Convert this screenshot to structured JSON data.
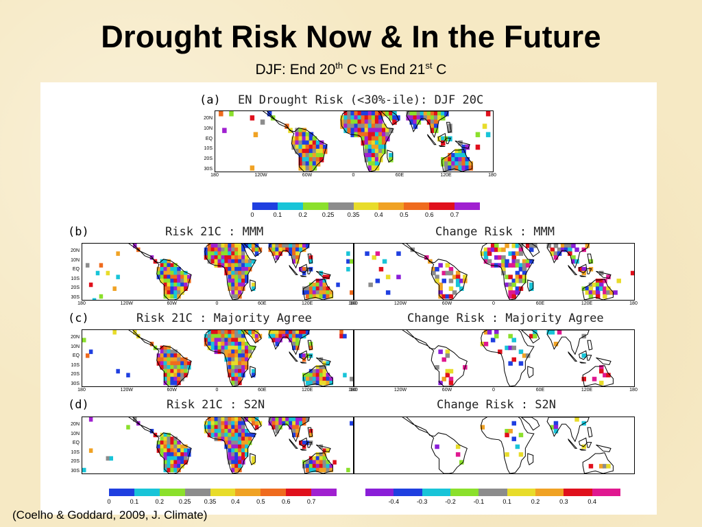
{
  "slide": {
    "title": "Drought Risk Now & In the Future",
    "subtitle_pre": "DJF: End 20",
    "subtitle_sup1": "th",
    "subtitle_mid": " C vs End 21",
    "subtitle_sup2": "st",
    "subtitle_post": " C",
    "citation": "(Coelho & Goddard, 2009, J. Climate)"
  },
  "panels": {
    "a": {
      "letter": "(a)",
      "title": "EN Drought Risk (<30%-ile): DJF 20C"
    },
    "b": {
      "letter": "(b)",
      "left_title": "Risk 21C : MMM",
      "right_title": "Change Risk : MMM"
    },
    "c": {
      "letter": "(c)",
      "left_title": "Risk 21C : Majority Agree",
      "right_title": "Change Risk : Majority Agree"
    },
    "d": {
      "letter": "(d)",
      "left_title": "Risk 21C : S2N",
      "right_title": "Change Risk : S2N"
    }
  },
  "axes": {
    "lat_labels": [
      "20N",
      "10N",
      "EQ",
      "10S",
      "20S",
      "30S"
    ],
    "lon_labels": [
      "180",
      "120W",
      "60W",
      "0",
      "60E",
      "120E",
      "180"
    ]
  },
  "colorbars": {
    "risk_labels": [
      "0",
      "0.1",
      "0.2",
      "0.25",
      "0.35",
      "0.4",
      "0.5",
      "0.6",
      "0.7"
    ],
    "risk_colors": [
      "#1f3fe0",
      "#18c4d8",
      "#8be02c",
      "#8c8c8c",
      "#e8dc2a",
      "#f0a224",
      "#ef6b1e",
      "#e0101c",
      "#a020d0"
    ],
    "change_labels": [
      "-0.4",
      "-0.3",
      "-0.2",
      "-0.1",
      "0.1",
      "0.2",
      "0.3",
      "0.4"
    ],
    "change_colors": [
      "#8a1ed8",
      "#1f3fe0",
      "#18c4d8",
      "#8be02c",
      "#8c8c8c",
      "#e8dc2a",
      "#f0a224",
      "#e0101c",
      "#e01890"
    ]
  }
}
